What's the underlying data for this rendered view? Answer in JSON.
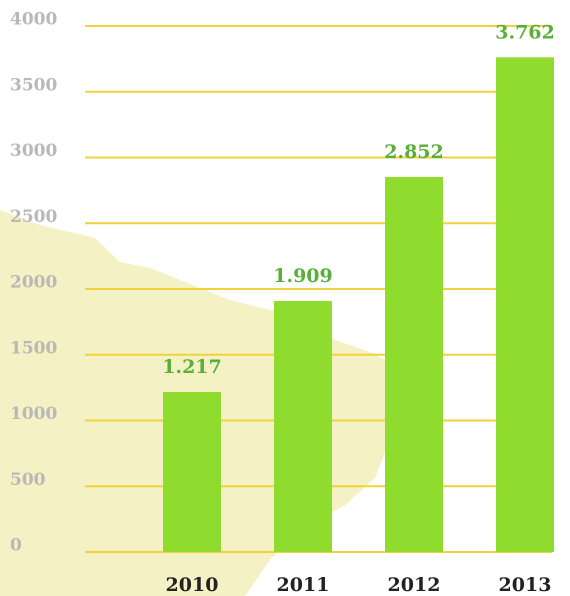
{
  "chart_data": {
    "type": "bar",
    "categories": [
      "2010",
      "2011",
      "2012",
      "2013"
    ],
    "values": [
      1217,
      1909,
      2852,
      3762
    ],
    "value_labels": [
      "1.217",
      "1.909",
      "2.852",
      "3.762"
    ],
    "color": "#8fdc2e",
    "ylim": [
      0,
      4000
    ],
    "yticks": [
      0,
      500,
      1000,
      1500,
      2000,
      2500,
      3000,
      3500,
      4000
    ],
    "grid": true,
    "grid_color": "#f2d23c"
  }
}
